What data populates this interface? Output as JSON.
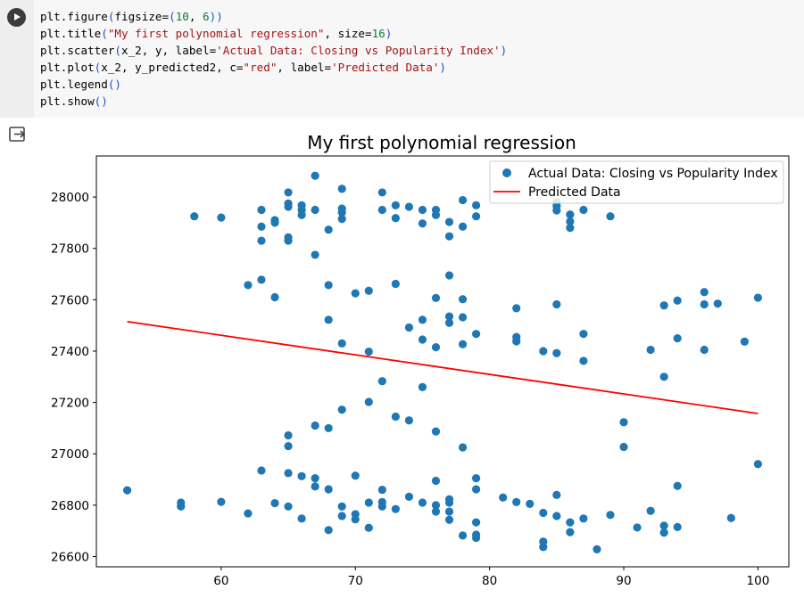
{
  "code_lines": [
    [
      [
        "plt.figure",
        ""
      ],
      [
        "(",
        "par"
      ],
      [
        "figsize=",
        ""
      ],
      [
        "(",
        "par"
      ],
      [
        "10",
        "num"
      ],
      [
        ", ",
        ""
      ],
      [
        "6",
        "num"
      ],
      [
        "))",
        "par"
      ]
    ],
    [
      [
        "plt.title",
        ""
      ],
      [
        "(",
        "par"
      ],
      [
        "\"My first polynomial regression\"",
        "str"
      ],
      [
        ", size=",
        ""
      ],
      [
        "16",
        "num"
      ],
      [
        ")",
        "par"
      ]
    ],
    [
      [
        "plt.scatter",
        ""
      ],
      [
        "(",
        "par"
      ],
      [
        "x_2, y, label=",
        ""
      ],
      [
        "'Actual Data: Closing vs Popularity Index'",
        "str"
      ],
      [
        ")",
        "par"
      ]
    ],
    [
      [
        "plt.plot",
        ""
      ],
      [
        "(",
        "par"
      ],
      [
        "x_2, y_predicted2, c=",
        ""
      ],
      [
        "\"red\"",
        "str"
      ],
      [
        ", label=",
        ""
      ],
      [
        "'Predicted Data'",
        "str"
      ],
      [
        ")",
        "par"
      ]
    ],
    [
      [
        "plt.legend",
        ""
      ],
      [
        "()",
        "par"
      ]
    ],
    [
      [
        "plt.show",
        ""
      ],
      [
        "()",
        "par"
      ]
    ]
  ],
  "chart_data": {
    "type": "scatter",
    "title": "My first polynomial regression",
    "xlabel": "",
    "ylabel": "",
    "xlim": [
      50.7,
      102.3
    ],
    "ylim": [
      26560,
      28160
    ],
    "xticks": [
      60,
      70,
      80,
      90,
      100
    ],
    "yticks": [
      26600,
      26800,
      27000,
      27200,
      27400,
      27600,
      27800,
      28000
    ],
    "grid": false,
    "legend_position": "top-right",
    "scatter_color": "#1f77b4",
    "line_color": "#ff0000",
    "series": [
      {
        "name": "Actual Data: Closing vs Popularity Index",
        "kind": "scatter",
        "points": [
          [
            53,
            26858
          ],
          [
            57,
            26810
          ],
          [
            57,
            26795
          ],
          [
            58,
            27925
          ],
          [
            60,
            27920
          ],
          [
            60,
            26813
          ],
          [
            62,
            27657
          ],
          [
            62,
            26768
          ],
          [
            63,
            27950
          ],
          [
            63,
            27885
          ],
          [
            63,
            27830
          ],
          [
            63,
            27678
          ],
          [
            63,
            26935
          ],
          [
            64,
            27910
          ],
          [
            64,
            27900
          ],
          [
            64,
            27610
          ],
          [
            64,
            26808
          ],
          [
            65,
            28018
          ],
          [
            65,
            27975
          ],
          [
            65,
            27962
          ],
          [
            65,
            27843
          ],
          [
            65,
            27830
          ],
          [
            65,
            27072
          ],
          [
            65,
            27030
          ],
          [
            65,
            26925
          ],
          [
            65,
            26795
          ],
          [
            66,
            27968
          ],
          [
            66,
            27950
          ],
          [
            66,
            27930
          ],
          [
            66,
            26913
          ],
          [
            66,
            26748
          ],
          [
            67,
            28083
          ],
          [
            67,
            27950
          ],
          [
            67,
            27775
          ],
          [
            67,
            27110
          ],
          [
            67,
            26905
          ],
          [
            67,
            26873
          ],
          [
            68,
            27873
          ],
          [
            68,
            27657
          ],
          [
            68,
            27522
          ],
          [
            68,
            27100
          ],
          [
            68,
            26862
          ],
          [
            68,
            26703
          ],
          [
            69,
            28032
          ],
          [
            69,
            27955
          ],
          [
            69,
            27940
          ],
          [
            69,
            27915
          ],
          [
            69,
            27430
          ],
          [
            69,
            27172
          ],
          [
            69,
            26795
          ],
          [
            69,
            26758
          ],
          [
            70,
            27625
          ],
          [
            70,
            26915
          ],
          [
            70,
            26765
          ],
          [
            70,
            26745
          ],
          [
            71,
            27635
          ],
          [
            71,
            27398
          ],
          [
            71,
            27202
          ],
          [
            71,
            26810
          ],
          [
            71,
            26712
          ],
          [
            72,
            28018
          ],
          [
            72,
            27950
          ],
          [
            72,
            27283
          ],
          [
            72,
            26860
          ],
          [
            72,
            26812
          ],
          [
            72,
            26795
          ],
          [
            73,
            27968
          ],
          [
            73,
            27918
          ],
          [
            73,
            27662
          ],
          [
            73,
            27145
          ],
          [
            73,
            26785
          ],
          [
            74,
            27962
          ],
          [
            74,
            27492
          ],
          [
            74,
            27130
          ],
          [
            74,
            26833
          ],
          [
            75,
            27950
          ],
          [
            75,
            27897
          ],
          [
            75,
            27522
          ],
          [
            75,
            27445
          ],
          [
            75,
            27260
          ],
          [
            75,
            26810
          ],
          [
            76,
            27950
          ],
          [
            76,
            27930
          ],
          [
            76,
            27607
          ],
          [
            76,
            27415
          ],
          [
            76,
            27087
          ],
          [
            76,
            26895
          ],
          [
            76,
            26800
          ],
          [
            76,
            26775
          ],
          [
            77,
            27903
          ],
          [
            77,
            27847
          ],
          [
            77,
            27695
          ],
          [
            77,
            27535
          ],
          [
            77,
            27510
          ],
          [
            77,
            26823
          ],
          [
            77,
            26810
          ],
          [
            77,
            26775
          ],
          [
            77,
            26743
          ],
          [
            78,
            27988
          ],
          [
            78,
            27885
          ],
          [
            78,
            27602
          ],
          [
            78,
            27532
          ],
          [
            78,
            27427
          ],
          [
            78,
            27025
          ],
          [
            78,
            26682
          ],
          [
            79,
            27968
          ],
          [
            79,
            27925
          ],
          [
            79,
            27467
          ],
          [
            79,
            26905
          ],
          [
            79,
            26862
          ],
          [
            79,
            26733
          ],
          [
            79,
            26685
          ],
          [
            79,
            26673
          ],
          [
            81,
            26830
          ],
          [
            82,
            27567
          ],
          [
            82,
            27455
          ],
          [
            82,
            27438
          ],
          [
            82,
            26812
          ],
          [
            83,
            26805
          ],
          [
            84,
            27400
          ],
          [
            84,
            26770
          ],
          [
            84,
            26658
          ],
          [
            84,
            26637
          ],
          [
            85,
            27980
          ],
          [
            85,
            27965
          ],
          [
            85,
            27948
          ],
          [
            85,
            27582
          ],
          [
            85,
            27392
          ],
          [
            85,
            26840
          ],
          [
            85,
            26758
          ],
          [
            86,
            27932
          ],
          [
            86,
            27905
          ],
          [
            86,
            27880
          ],
          [
            86,
            26733
          ],
          [
            86,
            26695
          ],
          [
            87,
            27950
          ],
          [
            87,
            27467
          ],
          [
            87,
            27362
          ],
          [
            87,
            26748
          ],
          [
            88,
            26628
          ],
          [
            89,
            27925
          ],
          [
            89,
            26762
          ],
          [
            90,
            27123
          ],
          [
            90,
            27027
          ],
          [
            91,
            26713
          ],
          [
            92,
            27405
          ],
          [
            92,
            26778
          ],
          [
            93,
            27578
          ],
          [
            93,
            27300
          ],
          [
            93,
            26720
          ],
          [
            93,
            26693
          ],
          [
            94,
            27597
          ],
          [
            94,
            27450
          ],
          [
            94,
            26875
          ],
          [
            94,
            26715
          ],
          [
            96,
            27630
          ],
          [
            96,
            27582
          ],
          [
            96,
            27405
          ],
          [
            97,
            27585
          ],
          [
            98,
            26750
          ],
          [
            99,
            27437
          ],
          [
            100,
            27608
          ],
          [
            100,
            26960
          ]
        ]
      },
      {
        "name": "Predicted Data",
        "kind": "line",
        "points": [
          [
            53,
            27515
          ],
          [
            100,
            27157
          ]
        ]
      }
    ]
  }
}
